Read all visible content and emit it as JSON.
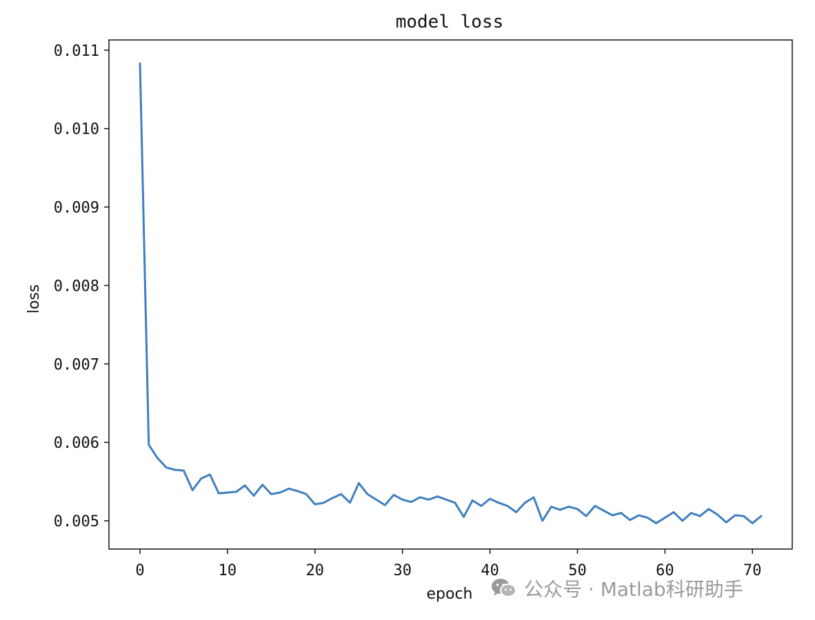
{
  "chart_data": {
    "type": "line",
    "title": "model loss",
    "xlabel": "epoch",
    "ylabel": "loss",
    "xlim": [
      -3.55,
      74.55
    ],
    "ylim": [
      0.00464,
      0.01113
    ],
    "x_ticks": [
      0,
      10,
      20,
      30,
      40,
      50,
      60,
      70
    ],
    "x_tick_labels": [
      "0",
      "10",
      "20",
      "30",
      "40",
      "50",
      "60",
      "70"
    ],
    "y_ticks": [
      0.005,
      0.006,
      0.007,
      0.008,
      0.009,
      0.01,
      0.011
    ],
    "y_tick_labels": [
      "0.005",
      "0.006",
      "0.007",
      "0.008",
      "0.009",
      "0.010",
      "0.011"
    ],
    "grid": false,
    "series": [
      {
        "color": "#3f7fbf",
        "x": [
          0,
          1,
          2,
          3,
          4,
          5,
          6,
          7,
          8,
          9,
          10,
          11,
          12,
          13,
          14,
          15,
          16,
          17,
          18,
          19,
          20,
          21,
          22,
          23,
          24,
          25,
          26,
          27,
          28,
          29,
          30,
          31,
          32,
          33,
          34,
          35,
          36,
          37,
          38,
          39,
          40,
          41,
          42,
          43,
          44,
          45,
          46,
          47,
          48,
          49,
          50,
          51,
          52,
          53,
          54,
          55,
          56,
          57,
          58,
          59,
          60,
          61,
          62,
          63,
          64,
          65,
          66,
          67,
          68,
          69,
          70,
          71
        ],
        "values": [
          0.01083,
          0.00597,
          0.0058,
          0.00568,
          0.00565,
          0.00564,
          0.00539,
          0.00554,
          0.00559,
          0.00535,
          0.00536,
          0.00537,
          0.00545,
          0.00532,
          0.00546,
          0.00534,
          0.00536,
          0.00541,
          0.00538,
          0.00534,
          0.00521,
          0.00523,
          0.00529,
          0.00534,
          0.00523,
          0.00548,
          0.00534,
          0.00527,
          0.0052,
          0.00533,
          0.00527,
          0.00524,
          0.0053,
          0.00527,
          0.00531,
          0.00527,
          0.00523,
          0.00505,
          0.00526,
          0.00519,
          0.00528,
          0.00523,
          0.00519,
          0.00511,
          0.00523,
          0.0053,
          0.005,
          0.00518,
          0.00514,
          0.00518,
          0.00515,
          0.00506,
          0.00519,
          0.00513,
          0.00507,
          0.0051,
          0.00501,
          0.00507,
          0.00504,
          0.00497,
          0.00504,
          0.00511,
          0.005,
          0.0051,
          0.00506,
          0.00515,
          0.00508,
          0.00498,
          0.00507,
          0.00506,
          0.00497,
          0.00506
        ]
      }
    ]
  },
  "watermark": {
    "text": "公众号 · Matlab科研助手",
    "icon": "wechat-icon"
  }
}
